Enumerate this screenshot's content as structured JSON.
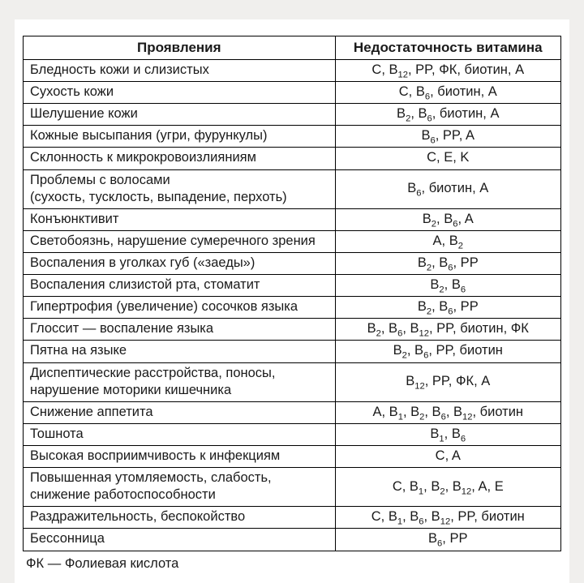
{
  "table": {
    "headers": [
      "Проявления",
      "Недостаточность витамина"
    ],
    "rows": [
      [
        "Бледность кожи и слизистых",
        "C, B<sub>12</sub>, PP, ФК, биотин, A"
      ],
      [
        "Сухость кожи",
        "C, B<sub>6</sub>, биотин, A"
      ],
      [
        "Шелушение кожи",
        "B<sub>2</sub>, B<sub>6</sub>, биотин, A"
      ],
      [
        "Кожные высыпания (угри, фурункулы)",
        "B<sub>6</sub>, PP, A"
      ],
      [
        "Склонность к микрокровоизлияниям",
        "C, E, K"
      ],
      [
        "Проблемы с волосами<br>(сухость, тусклость, выпадение, перхоть)",
        "B<sub>6</sub>, биотин, A"
      ],
      [
        "Конъюнктивит",
        "B<sub>2</sub>, B<sub>6</sub>, A"
      ],
      [
        "Светобоязнь, нарушение сумеречного зрения",
        "A, B<sub>2</sub>"
      ],
      [
        "Воспаления в уголках губ («заеды»)",
        "B<sub>2</sub>, B<sub>6</sub>, PP"
      ],
      [
        "Воспаления слизистой рта, стоматит",
        "B<sub>2</sub>, B<sub>6</sub>"
      ],
      [
        "Гипертрофия (увеличение) сосочков языка",
        "B<sub>2</sub>, B<sub>6</sub>, PP"
      ],
      [
        "Глоссит — воспаление языка",
        "B<sub>2</sub>, B<sub>6</sub>, B<sub>12</sub>, PP, биотин, ФК"
      ],
      [
        "Пятна на языке",
        "B<sub>2</sub>, B<sub>6</sub>, PP, биотин"
      ],
      [
        "Диспептические расстройства, поносы,<br>нарушение моторики кишечника",
        "B<sub>12</sub>, PP, ФК, A"
      ],
      [
        "Снижение аппетита",
        "A, B<sub>1</sub>, B<sub>2</sub>, B<sub>6</sub>, B<sub>12</sub>, биотин"
      ],
      [
        "Тошнота",
        "B<sub>1</sub>, B<sub>6</sub>"
      ],
      [
        "Высокая восприимчивость к инфекциям",
        "C, A"
      ],
      [
        "Повышенная утомляемость, слабость,<br>снижение работоспособности",
        "C, B<sub>1</sub>, B<sub>2</sub>, B<sub>12</sub>, A, E"
      ],
      [
        "Раздражительность, беспокойство",
        "C, B<sub>1</sub>, B<sub>6</sub>, B<sub>12</sub>, PP, биотин"
      ],
      [
        "Бессонница",
        "B<sub>6</sub>, PP"
      ]
    ],
    "footnote": "ФК — Фолиевая кислота"
  },
  "style": {
    "page_bg": "#f0efed",
    "card_bg": "#ffffff",
    "border_color": "#000000",
    "text_color": "#1a1a1a",
    "header_fontsize": 17,
    "cell_fontsize": 16.5,
    "col1_width_pct": 58,
    "col2_width_pct": 42
  }
}
